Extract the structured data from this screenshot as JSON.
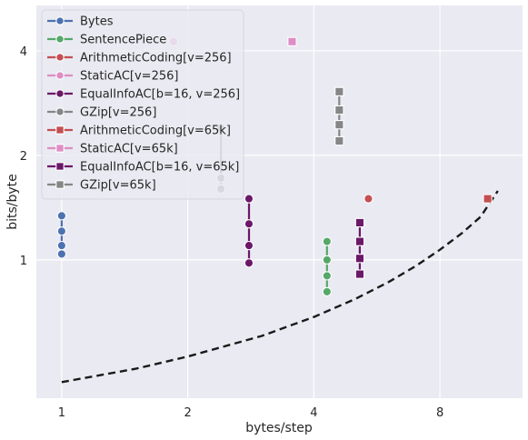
{
  "chart_data": {
    "type": "scatter",
    "title": "",
    "xlabel": "bytes/step",
    "ylabel": "bits/byte",
    "x_scale": "log2",
    "y_scale": "log2",
    "xlim": [
      0.87,
      12.6
    ],
    "ylim": [
      0.4,
      5.4
    ],
    "x_ticks": [
      1,
      2,
      4,
      8
    ],
    "y_ticks": [
      1,
      2,
      4
    ],
    "x_tick_labels": [
      "1",
      "2",
      "4",
      "8"
    ],
    "y_tick_labels": [
      "1",
      "2",
      "4"
    ],
    "grid": true,
    "background": "#eaeaf2",
    "legend_position": "top-left",
    "series": [
      {
        "name": "Bytes",
        "color": "#4c72b0",
        "marker": "circle",
        "linestyle": "solid",
        "x": [
          1,
          1,
          1,
          1
        ],
        "y": [
          1.34,
          1.21,
          1.1,
          1.04
        ]
      },
      {
        "name": "SentencePiece",
        "color": "#55a868",
        "marker": "circle",
        "linestyle": "solid",
        "x": [
          4.3,
          4.3,
          4.3,
          4.3
        ],
        "y": [
          1.13,
          1.0,
          0.9,
          0.81
        ]
      },
      {
        "name": "ArithmeticCoding[v=256]",
        "color": "#c44e52",
        "marker": "circle",
        "linestyle": "solid",
        "x": [
          5.4
        ],
        "y": [
          1.5
        ]
      },
      {
        "name": "StaticAC[v=256]",
        "color": "#dd8ec4",
        "marker": "circle",
        "linestyle": "solid",
        "x": [
          1.85
        ],
        "y": [
          4.25
        ]
      },
      {
        "name": "EqualInfoAC[b=16, v=256]",
        "color": "#6b1868",
        "marker": "circle",
        "linestyle": "solid",
        "x": [
          2.8,
          2.8,
          2.8,
          2.8
        ],
        "y": [
          1.5,
          1.27,
          1.1,
          0.98
        ]
      },
      {
        "name": "GZip[v=256]",
        "color": "#868686",
        "marker": "circle",
        "linestyle": "solid",
        "x": [
          2.4,
          2.4,
          2.4
        ],
        "y": [
          2.4,
          1.72,
          1.6
        ]
      },
      {
        "name": "ArithmeticCoding[v=65k]",
        "color": "#c44e52",
        "marker": "square",
        "linestyle": "solid",
        "x": [
          10.4
        ],
        "y": [
          1.5
        ]
      },
      {
        "name": "StaticAC[v=65k]",
        "color": "#dd8ec4",
        "marker": "square",
        "linestyle": "solid",
        "x": [
          3.55
        ],
        "y": [
          4.25
        ]
      },
      {
        "name": "EqualInfoAC[b=16, v=65k]",
        "color": "#6b1868",
        "marker": "square",
        "linestyle": "solid",
        "x": [
          5.15,
          5.15,
          5.15,
          5.15
        ],
        "y": [
          1.28,
          1.13,
          1.01,
          0.91
        ]
      },
      {
        "name": "GZip[v=65k]",
        "color": "#868686",
        "marker": "square",
        "linestyle": "solid",
        "x": [
          4.6,
          4.6,
          4.6,
          4.6
        ],
        "y": [
          3.05,
          2.7,
          2.45,
          2.2
        ]
      }
    ],
    "trend_line": {
      "color": "#1a1a1a",
      "linestyle": "dashed",
      "x": [
        1,
        1.5,
        2,
        3,
        4,
        5,
        6,
        7,
        8,
        9,
        10,
        11
      ],
      "y": [
        0.445,
        0.486,
        0.527,
        0.604,
        0.685,
        0.77,
        0.86,
        0.96,
        1.07,
        1.19,
        1.33,
        1.58
      ]
    }
  }
}
